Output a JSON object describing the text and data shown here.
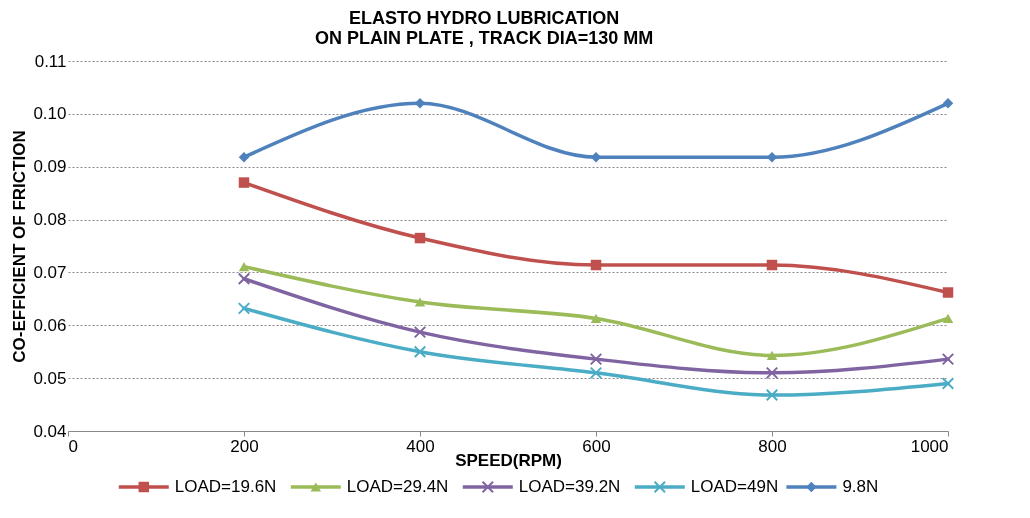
{
  "chart_data": {
    "type": "line",
    "title": "ELASTO HYDRO LUBRICATION\nON PLAIN PLATE , TRACK DIA=130 MM",
    "xlabel": "SPEED(RPM)",
    "ylabel": "CO-EFFICIENT OF FRICTION",
    "x": [
      200,
      400,
      600,
      800,
      1000
    ],
    "xlim": [
      0,
      1000
    ],
    "xticks": [
      0,
      200,
      400,
      600,
      800,
      1000
    ],
    "ylim": [
      0.04,
      0.11
    ],
    "yticks": [
      {
        "value": 0.04,
        "label": "0.04"
      },
      {
        "value": 0.05,
        "label": "0.05"
      },
      {
        "value": 0.06,
        "label": "0.06"
      },
      {
        "value": 0.07,
        "label": "0.07"
      },
      {
        "value": 0.08,
        "label": "0.08"
      },
      {
        "value": 0.09,
        "label": "0.09"
      },
      {
        "value": 0.1,
        "label": "0.10"
      },
      {
        "value": 0.11,
        "label": "0.11"
      }
    ],
    "grid": "y",
    "legend": "bottom",
    "series": [
      {
        "name": "LOAD=19.6N",
        "color": "#c0504d",
        "marker": "square",
        "values": [
          0.087,
          0.0765,
          0.0714,
          0.0714,
          0.0662
        ]
      },
      {
        "name": "LOAD=29.4N",
        "color": "#9bbb59",
        "marker": "triangle",
        "values": [
          0.0711,
          0.0644,
          0.0613,
          0.0543,
          0.0613
        ]
      },
      {
        "name": "LOAD=39.2N",
        "color": "#8064a2",
        "marker": "cross",
        "values": [
          0.0688,
          0.0587,
          0.0536,
          0.051,
          0.0536
        ]
      },
      {
        "name": "LOAD=49N",
        "color": "#4bacc6",
        "marker": "cross",
        "values": [
          0.0632,
          0.055,
          0.051,
          0.0468,
          0.049
        ]
      },
      {
        "name": "9.8N",
        "color": "#4f81bd",
        "marker": "diamond",
        "values": [
          0.0918,
          0.102,
          0.0918,
          0.0918,
          0.102
        ]
      }
    ]
  }
}
